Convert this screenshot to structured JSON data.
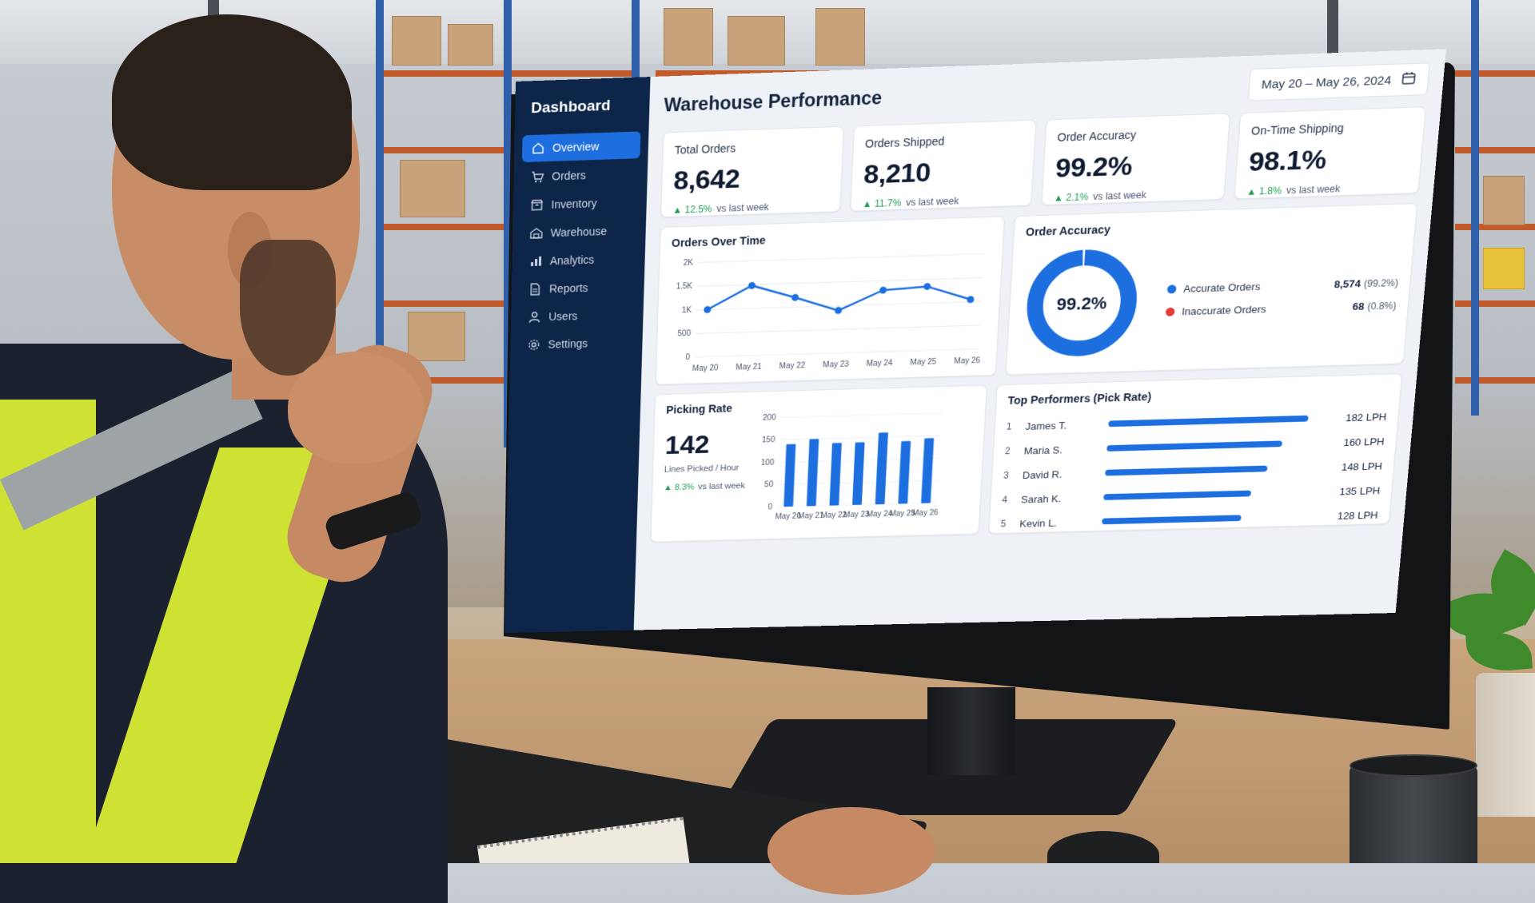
{
  "sidebar": {
    "title": "Dashboard",
    "items": [
      {
        "label": "Overview",
        "icon": "home-icon",
        "active": true
      },
      {
        "label": "Orders",
        "icon": "cart-icon"
      },
      {
        "label": "Inventory",
        "icon": "box-icon"
      },
      {
        "label": "Warehouse",
        "icon": "warehouse-icon"
      },
      {
        "label": "Analytics",
        "icon": "bar-chart-icon"
      },
      {
        "label": "Reports",
        "icon": "file-icon"
      },
      {
        "label": "Users",
        "icon": "user-icon"
      },
      {
        "label": "Settings",
        "icon": "gear-icon"
      }
    ]
  },
  "header": {
    "title": "Warehouse Performance",
    "date_range": "May 20 – May 26, 2024",
    "date_icon": "calendar-icon"
  },
  "kpis": [
    {
      "label": "Total Orders",
      "value": "8,642",
      "delta": "12.5%",
      "delta_suffix": "vs last week"
    },
    {
      "label": "Orders Shipped",
      "value": "8,210",
      "delta": "11.7%",
      "delta_suffix": "vs last week"
    },
    {
      "label": "Order Accuracy",
      "value": "99.2%",
      "delta": "2.1%",
      "delta_suffix": "vs last week"
    },
    {
      "label": "On-Time Shipping",
      "value": "98.1%",
      "delta": "1.8%",
      "delta_suffix": "vs last week"
    }
  ],
  "orders_over_time": {
    "title": "Orders Over Time",
    "chart_data": {
      "type": "line",
      "categories": [
        "May 20",
        "May 21",
        "May 22",
        "May 23",
        "May 24",
        "May 25",
        "May 26"
      ],
      "values": [
        1000,
        1480,
        1200,
        900,
        1300,
        1350,
        1050
      ],
      "yticks": [
        "0",
        "500",
        "1K",
        "1.5K",
        "2K"
      ],
      "ylim": [
        0,
        2000
      ],
      "grid": true
    }
  },
  "order_accuracy_panel": {
    "title": "Order Accuracy",
    "center_label": "99.2%",
    "chart_data": {
      "type": "pie",
      "categories": [
        "Accurate Orders",
        "Inaccurate Orders"
      ],
      "values": [
        8574,
        68
      ],
      "counts": [
        "8,574",
        "68"
      ],
      "percents": [
        "(99.2%)",
        "(0.8%)"
      ],
      "colors": [
        "#1d6fe0",
        "#e53935"
      ]
    }
  },
  "picking_rate": {
    "title": "Picking Rate",
    "value": "142",
    "unit": "Lines Picked / Hour",
    "delta": "8.3%",
    "delta_suffix": "vs last week",
    "chart_data": {
      "type": "bar",
      "categories": [
        "May 20",
        "May 21",
        "May 22",
        "May 23",
        "May 24",
        "May 25",
        "May 26"
      ],
      "values": [
        140,
        150,
        140,
        140,
        160,
        140,
        145
      ],
      "yticks": [
        "0",
        "50",
        "100",
        "150",
        "200"
      ],
      "ylim": [
        0,
        200
      ]
    }
  },
  "top_performers": {
    "title": "Top Performers (Pick Rate)",
    "chart_data": {
      "type": "bar",
      "orientation": "horizontal",
      "categories": [
        "James T.",
        "Maria S.",
        "David R.",
        "Sarah K.",
        "Kevin L."
      ],
      "ranks": [
        "1",
        "2",
        "3",
        "4",
        "5"
      ],
      "values": [
        182,
        160,
        148,
        135,
        128
      ],
      "labels": [
        "182 LPH",
        "160 LPH",
        "148 LPH",
        "135 LPH",
        "128 LPH"
      ],
      "xlim": [
        0,
        190
      ]
    }
  },
  "colors": {
    "sidebar_bg": "#0d2548",
    "accent": "#1d6fe0",
    "positive": "#1f9d55",
    "negative": "#e53935"
  }
}
